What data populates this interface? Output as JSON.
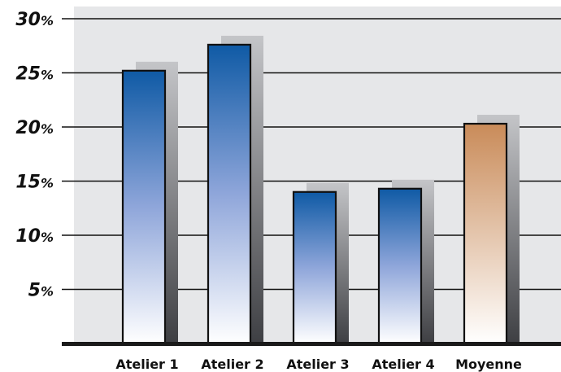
{
  "chart_data": {
    "type": "bar",
    "title": "",
    "xlabel": "",
    "ylabel": "",
    "categories": [
      "Atelier 1",
      "Atelier 2",
      "Atelier 3",
      "Atelier 4",
      "Moyenne"
    ],
    "values": [
      25.2,
      27.6,
      14.0,
      14.3,
      20.3
    ],
    "highlight_category": "Moyenne",
    "ylim": [
      0,
      30
    ],
    "yticks": [
      {
        "value": 5,
        "num": "5",
        "unit": "%"
      },
      {
        "value": 10,
        "num": "10",
        "unit": "%"
      },
      {
        "value": 15,
        "num": "15",
        "unit": "%"
      },
      {
        "value": 20,
        "num": "20",
        "unit": "%"
      },
      {
        "value": 25,
        "num": "25",
        "unit": "%"
      },
      {
        "value": 30,
        "num": "30",
        "unit": "%"
      }
    ],
    "grid": true,
    "legend": "none",
    "colors": {
      "bar_top": "#0f5aa5",
      "bar_mid": "#8fa6da",
      "bar_bottom": "#ffffff",
      "highlight_top": "#c98b59",
      "highlight_bottom": "#ffffff",
      "plot_background": "#e6e7e9",
      "gridline": "#111111"
    }
  }
}
